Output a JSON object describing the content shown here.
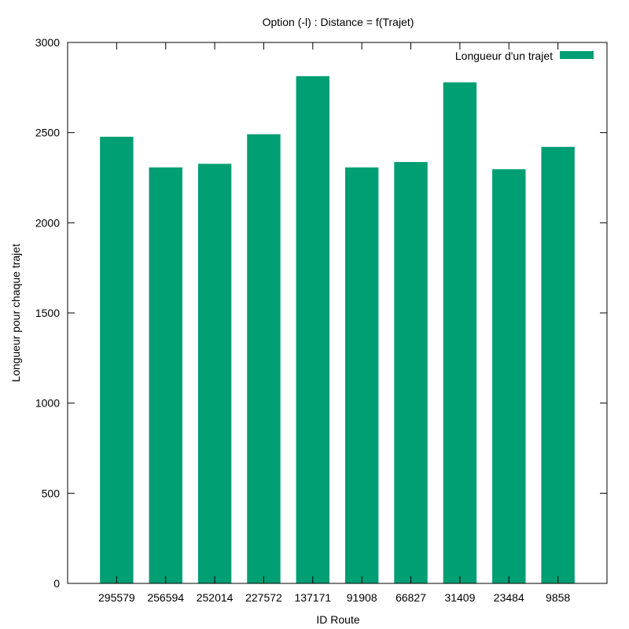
{
  "chart_data": {
    "type": "bar",
    "title": "Option (-l) : Distance = f(Trajet)",
    "xlabel": "ID Route",
    "ylabel": "Longueur pour chaque trajet",
    "ylim": [
      0,
      3000
    ],
    "yticks": [
      0,
      500,
      1000,
      1500,
      2000,
      2500,
      3000
    ],
    "categories": [
      "295579",
      "256594",
      "252014",
      "227572",
      "137171",
      "91908",
      "66827",
      "31409",
      "23484",
      "9858"
    ],
    "series": [
      {
        "name": "Longueur d'un trajet",
        "color": "#009e73",
        "values": [
          2477,
          2307,
          2327,
          2491,
          2813,
          2307,
          2337,
          2779,
          2297,
          2421
        ]
      }
    ],
    "legend_position": "top-right",
    "grid": false
  }
}
